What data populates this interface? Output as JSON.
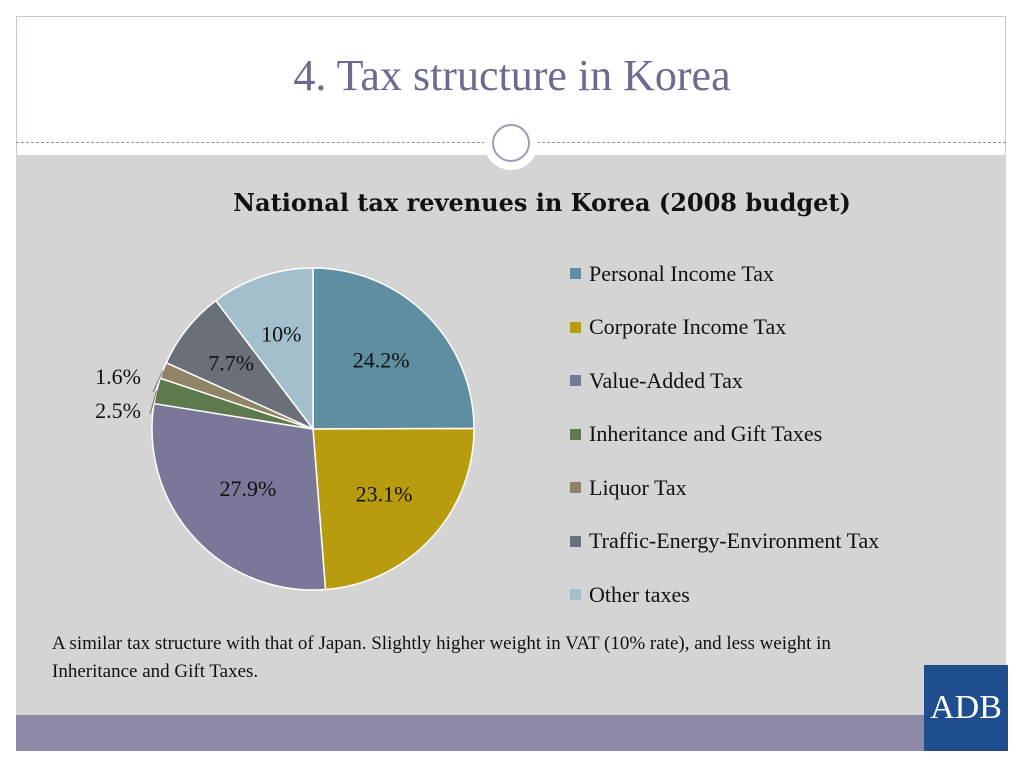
{
  "slide": {
    "title": "4. Tax structure in Korea",
    "note": "A similar tax structure with that of Japan. Slightly higher weight in VAT (10% rate), and less weight in Inheritance and Gift Taxes.",
    "logo_text": "ADB"
  },
  "chart_data": {
    "type": "pie",
    "title": "National tax revenues in Korea (2008 budget)",
    "legend_position": "right",
    "categories": [
      "Personal Income Tax",
      "Corporate Income Tax",
      "Value-Added Tax",
      "Inheritance and Gift Taxes",
      "Liquor Tax",
      "Traffic-Energy-Environment Tax",
      "Other taxes"
    ],
    "values": [
      24.2,
      23.1,
      27.9,
      2.5,
      1.6,
      7.7,
      10
    ],
    "labels": [
      "24.2%",
      "23.1%",
      "27.9%",
      "2.5%",
      "1.6%",
      "7.7%",
      "10%"
    ],
    "colors": [
      "#5f8ea0",
      "#b89c0d",
      "#7a7898",
      "#5e7a4c",
      "#8f8465",
      "#6b7078",
      "#a3bfcc"
    ]
  }
}
